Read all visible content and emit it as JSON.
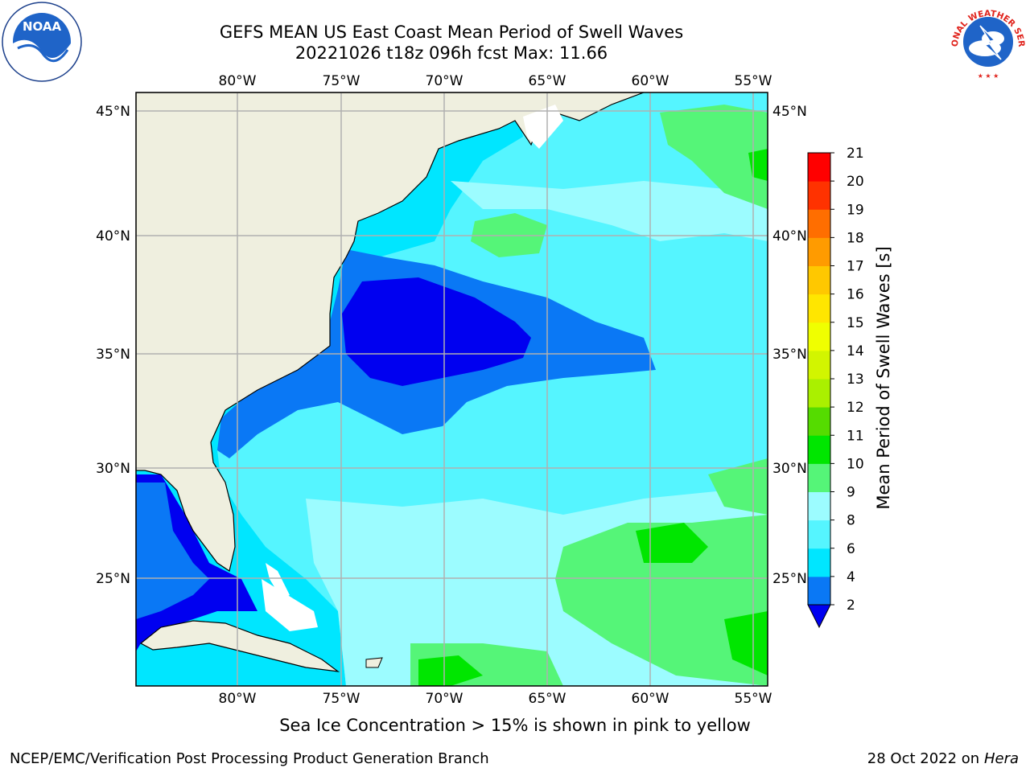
{
  "header": {
    "title_line1": "GEFS MEAN US East Coast Mean Period of Swell Waves",
    "title_line2": "20221026 t18z 096h fcst   Max: 11.66"
  },
  "logos": {
    "left": "noaa-logo",
    "right": "national-weather-service-logo",
    "left_text": "NOAA",
    "right_text": "NATIONAL WEATHER SERVICE"
  },
  "map": {
    "lon_ticks": [
      "80°W",
      "75°W",
      "70°W",
      "65°W",
      "60°W",
      "55°W"
    ],
    "lat_ticks": [
      "45°N",
      "40°N",
      "35°N",
      "30°N",
      "25°N"
    ],
    "land_color": "#efefdf",
    "gridline_color": "#b0b0b0"
  },
  "colorbar": {
    "label": "Mean Period of Swell Waves [s]",
    "levels": [
      "2",
      "4",
      "6",
      "8",
      "9",
      "10",
      "11",
      "12",
      "13",
      "14",
      "15",
      "16",
      "17",
      "18",
      "19",
      "20",
      "21"
    ],
    "colors": [
      "#0000f0",
      "#0a78f5",
      "#00e6ff",
      "#55f5ff",
      "#9cfcff",
      "#55f578",
      "#00e600",
      "#55dc00",
      "#aaf000",
      "#d2f500",
      "#f0ff00",
      "#ffe600",
      "#ffc800",
      "#ff9b00",
      "#ff6e00",
      "#ff3200",
      "#ff0000"
    ]
  },
  "footer": {
    "sea_ice_note": "Sea Ice Concentration > 15% is shown in pink to yellow",
    "credit_left": "NCEP/EMC/Verification Post Processing Product Generation Branch",
    "credit_date": "28 Oct 2022 on ",
    "credit_host": "Hera"
  }
}
